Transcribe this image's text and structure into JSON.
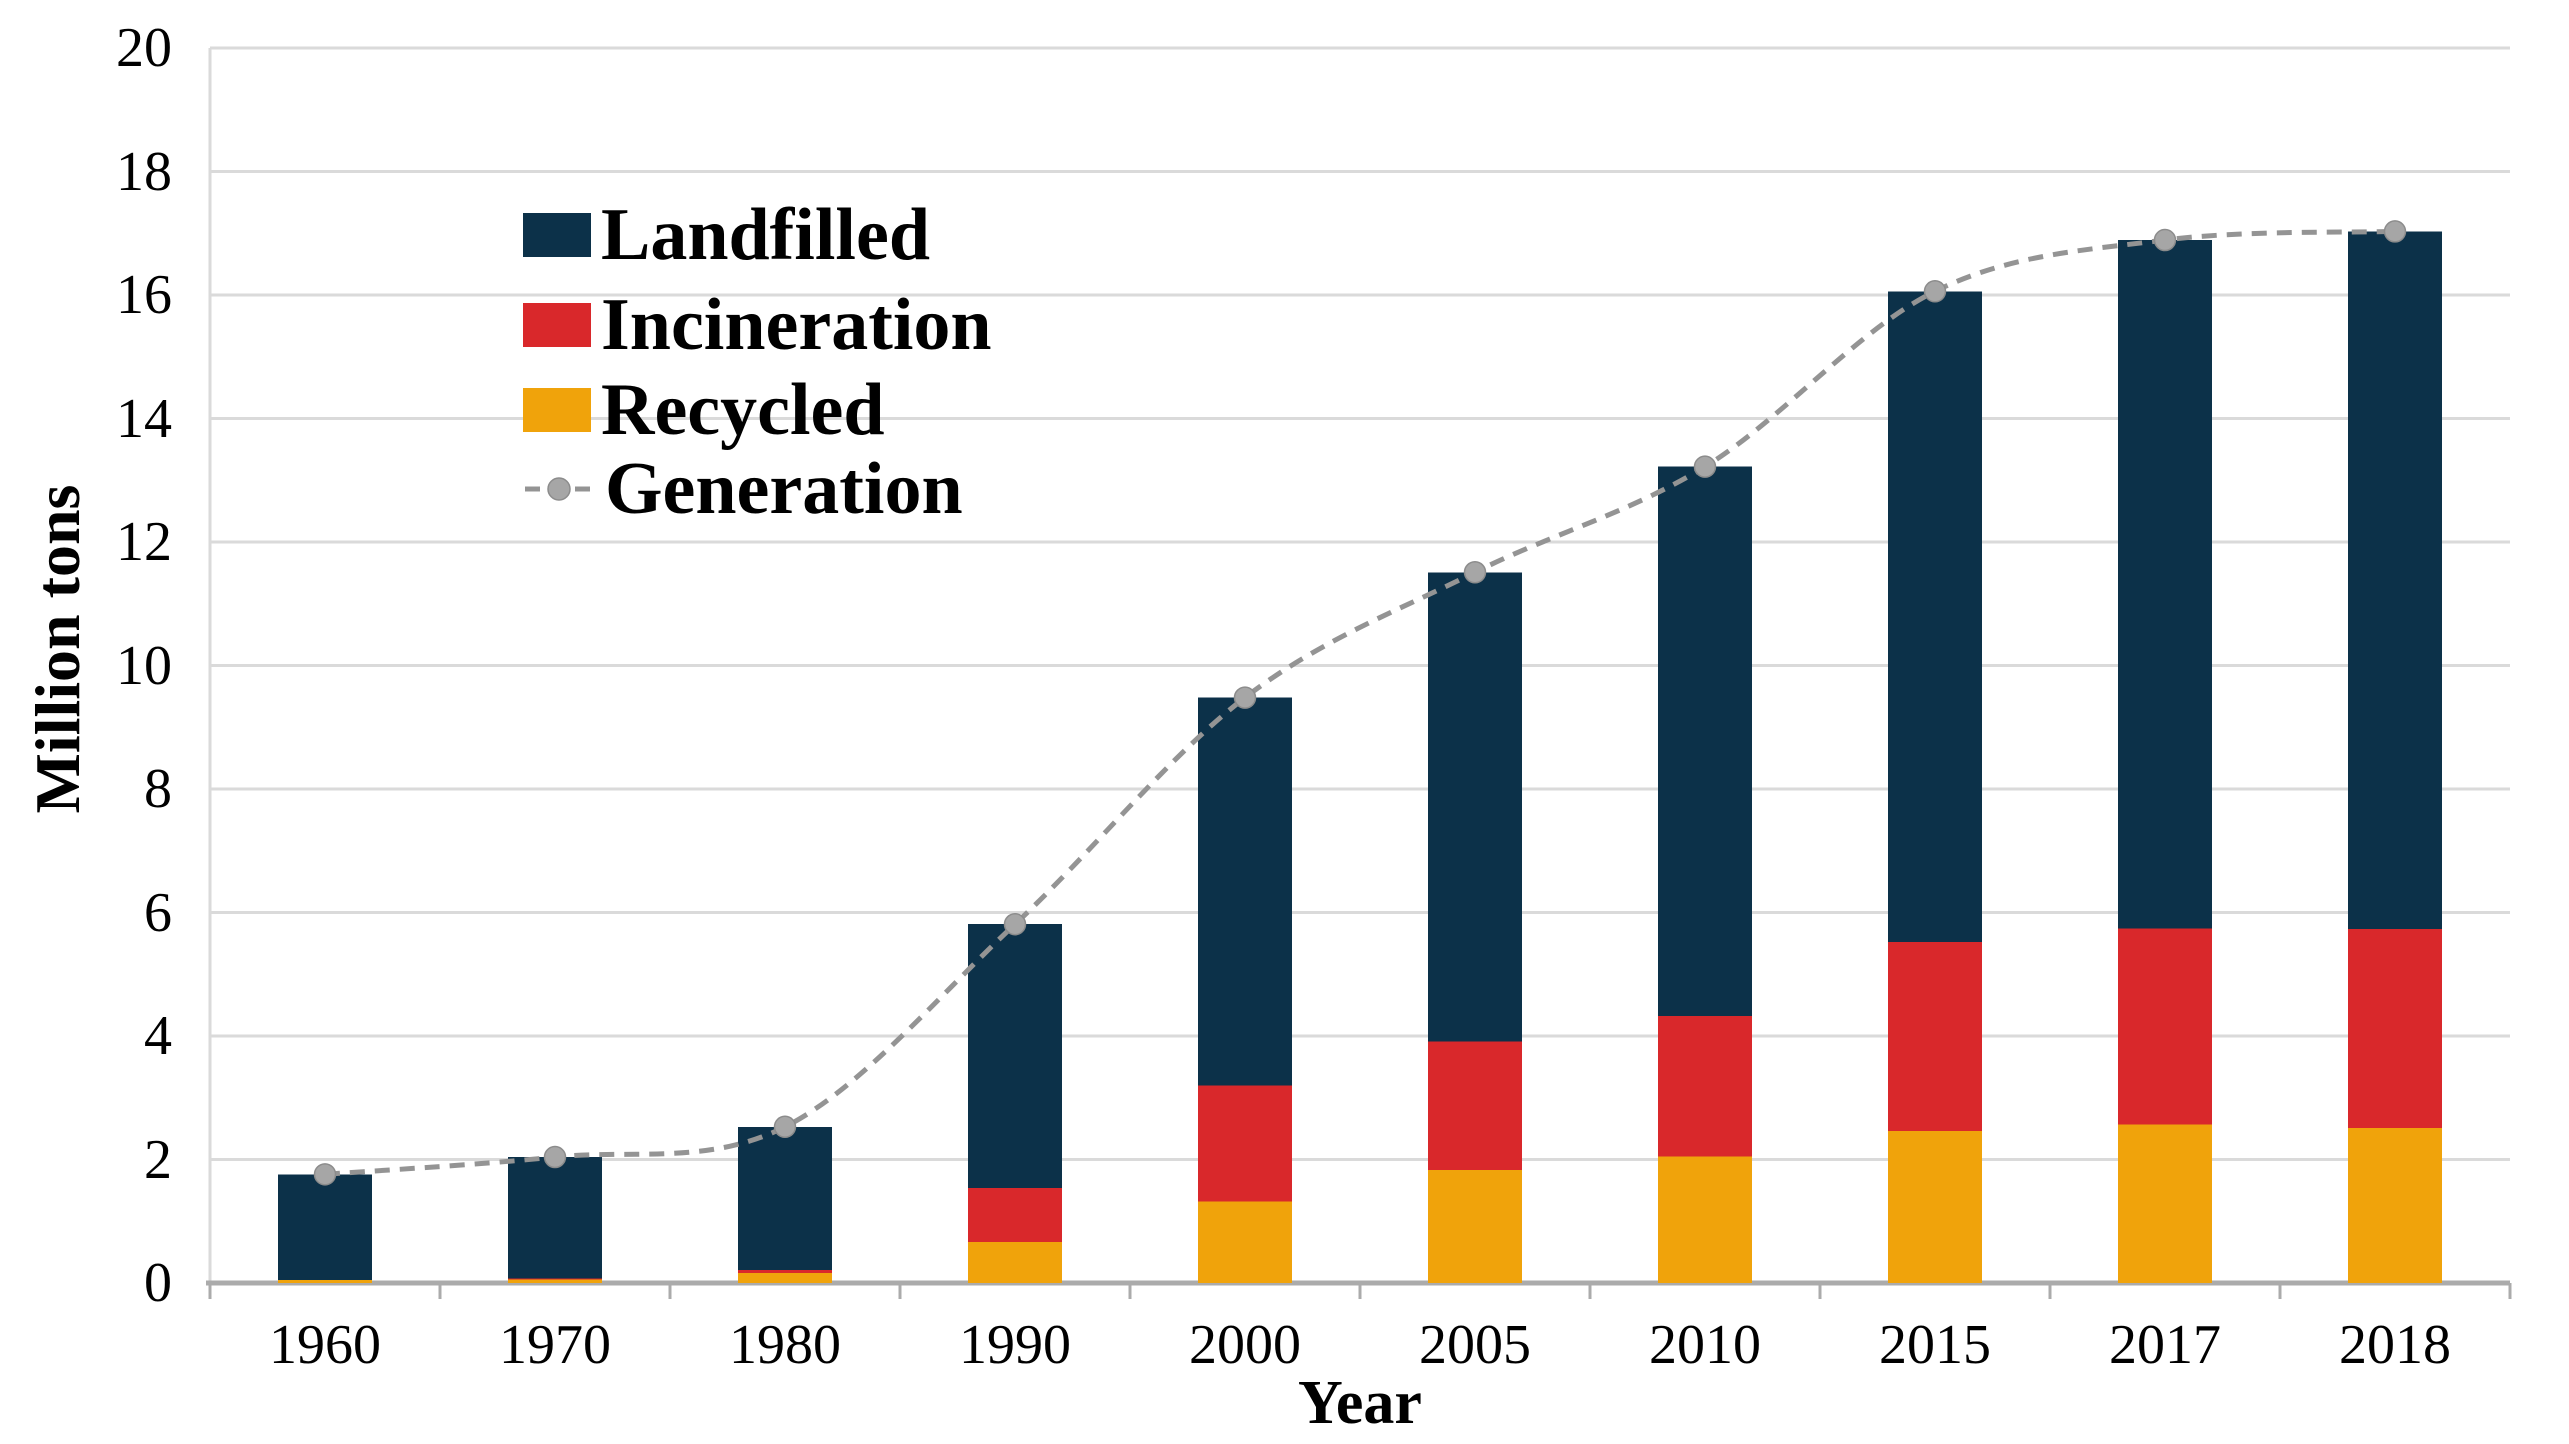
{
  "chart_data": {
    "type": "bar",
    "subtype": "stacked-bars-with-line",
    "title": "",
    "xlabel": "Year",
    "ylabel": "Million tons",
    "categories": [
      "1960",
      "1970",
      "1980",
      "1990",
      "2000",
      "2005",
      "2010",
      "2015",
      "2017",
      "2018"
    ],
    "series": [
      {
        "name": "Recycled",
        "type": "bar",
        "color": "#f0a30b",
        "values": [
          0.05,
          0.06,
          0.16,
          0.66,
          1.32,
          1.83,
          2.05,
          2.46,
          2.57,
          2.51
        ]
      },
      {
        "name": "Incineration",
        "type": "bar",
        "color": "#d9282b",
        "values": [
          0.0,
          0.01,
          0.05,
          0.88,
          1.88,
          2.08,
          2.27,
          3.06,
          3.17,
          3.22
        ]
      },
      {
        "name": "Landfilled",
        "type": "bar",
        "color": "#0c3149",
        "values": [
          1.71,
          1.97,
          2.32,
          4.27,
          6.28,
          7.6,
          8.9,
          10.54,
          11.15,
          11.3
        ]
      }
    ],
    "line_series": {
      "name": "Generation",
      "color": "#949494",
      "marker_color": "#a6a6a6",
      "marker_edge_color": "#8c8c8c",
      "style": "dashed-smooth",
      "values": [
        1.76,
        2.04,
        2.53,
        5.81,
        9.48,
        11.51,
        13.22,
        16.06,
        16.89,
        17.03
      ]
    },
    "ylim": [
      0,
      20
    ],
    "y_ticks": [
      0,
      2,
      4,
      6,
      8,
      10,
      12,
      14,
      16,
      18,
      20
    ],
    "grid": "horizontal",
    "gridline_color": "#dadada",
    "axis_line_color": "#ababab",
    "legend_position": "upper-left-inside",
    "legend": [
      {
        "label": "Landfilled",
        "glyph": "square",
        "color": "#0c3149"
      },
      {
        "label": "Incineration",
        "glyph": "square",
        "color": "#d9282b"
      },
      {
        "label": "Recycled",
        "glyph": "square",
        "color": "#f0a30b"
      },
      {
        "label": "Generation",
        "glyph": "dashed-line-dot",
        "color": "#949494"
      }
    ]
  }
}
